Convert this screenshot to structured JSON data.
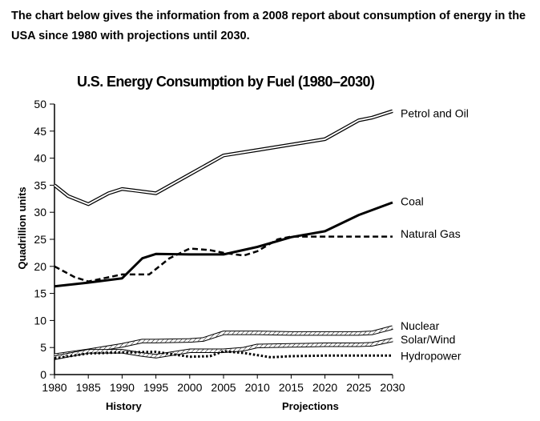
{
  "intro_text": "The chart below gives the information from a 2008 report about consumption of energy in the USA since 1980 with projections until 2030.",
  "chart_data": {
    "type": "line",
    "title": "U.S. Energy Consumption by Fuel (1980–2030)",
    "xlabel": "",
    "ylabel": "Quadrillion units",
    "x_section_labels": [
      "History",
      "Projections"
    ],
    "xlim": [
      1980,
      2030
    ],
    "ylim": [
      0,
      50
    ],
    "x_ticks": [
      1980,
      1985,
      1990,
      1995,
      2000,
      2005,
      2010,
      2015,
      2020,
      2025,
      2030
    ],
    "y_ticks": [
      0,
      5,
      10,
      15,
      20,
      25,
      30,
      35,
      40,
      45,
      50
    ],
    "series": [
      {
        "name": "Petrol and Oil",
        "style": "double-line",
        "x": [
          1980,
          1982,
          1985,
          1988,
          1990,
          1992,
          1995,
          2000,
          2005,
          2010,
          2015,
          2020,
          2025,
          2027,
          2030
        ],
        "y": [
          35,
          33,
          31.5,
          33.5,
          34.3,
          34,
          33.5,
          37,
          40.5,
          41.5,
          42.5,
          43.5,
          47,
          47.5,
          48.7
        ]
      },
      {
        "name": "Coal",
        "style": "solid",
        "x": [
          1980,
          1985,
          1990,
          1993,
          1995,
          2000,
          2005,
          2010,
          2015,
          2020,
          2025,
          2030
        ],
        "y": [
          16.3,
          17,
          17.8,
          21.5,
          22.3,
          22.2,
          22.2,
          23.6,
          25.4,
          26.5,
          29.5,
          31.8
        ],
        "label": "Coal"
      },
      {
        "name": "Natural Gas",
        "style": "dashed",
        "x": [
          1980,
          1983,
          1985,
          1990,
          1994,
          1997,
          2000,
          2003,
          2005,
          2008,
          2010,
          2013,
          2015,
          2020,
          2025,
          2030
        ],
        "y": [
          20,
          18,
          17.2,
          18.5,
          18.5,
          21.5,
          23.3,
          23,
          22.5,
          22,
          22.8,
          25,
          25.5,
          25.5,
          25.5,
          25.5
        ]
      },
      {
        "name": "Nuclear",
        "style": "hatched",
        "x": [
          1980,
          1985,
          1990,
          1993,
          1995,
          2000,
          2002,
          2005,
          2010,
          2015,
          2020,
          2025,
          2027,
          2030
        ],
        "y": [
          3.5,
          4.4,
          5.4,
          6.2,
          6.2,
          6.3,
          6.5,
          7.7,
          7.7,
          7.6,
          7.6,
          7.6,
          7.7,
          8.7
        ]
      },
      {
        "name": "Solar/Wind",
        "style": "hatched",
        "x": [
          1980,
          1985,
          1990,
          1993,
          1995,
          2000,
          2005,
          2008,
          2010,
          2015,
          2020,
          2025,
          2027,
          2030
        ],
        "y": [
          3.1,
          4.3,
          4.3,
          3.7,
          3.4,
          4.4,
          4.4,
          4.7,
          5.3,
          5.4,
          5.5,
          5.5,
          5.6,
          6.4
        ]
      },
      {
        "name": "Hydropower",
        "style": "dotted",
        "x": [
          1980,
          1985,
          1990,
          1995,
          2000,
          2003,
          2005,
          2008,
          2010,
          2012,
          2015,
          2020,
          2025,
          2030
        ],
        "y": [
          3,
          3.9,
          4.1,
          4.2,
          3.3,
          3.4,
          4.3,
          4,
          3.6,
          3.2,
          3.4,
          3.5,
          3.5,
          3.5
        ]
      }
    ]
  }
}
